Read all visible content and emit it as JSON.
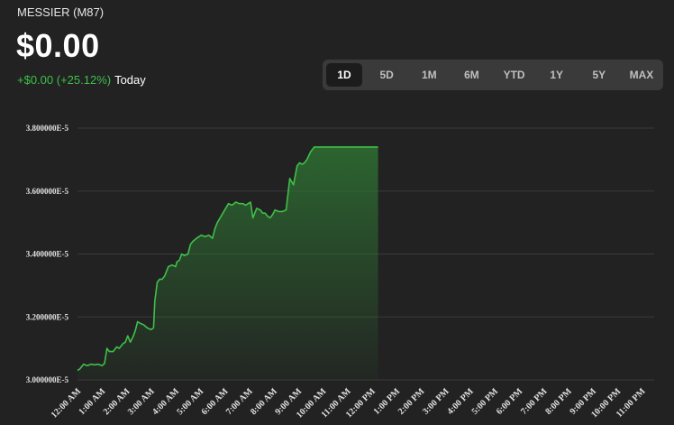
{
  "header": {
    "ticker": "MESSIER (M87)",
    "price": "$0.00",
    "change": "+$0.00 (+25.12%)",
    "period": "Today"
  },
  "ranges": [
    {
      "label": "1D",
      "active": true
    },
    {
      "label": "5D",
      "active": false
    },
    {
      "label": "1M",
      "active": false
    },
    {
      "label": "6M",
      "active": false
    },
    {
      "label": "YTD",
      "active": false
    },
    {
      "label": "1Y",
      "active": false
    },
    {
      "label": "5Y",
      "active": false
    },
    {
      "label": "MAX",
      "active": false
    }
  ],
  "colors": {
    "background": "#222222",
    "line": "#3fbf4a",
    "grid": "#3a3a3a"
  },
  "chart_data": {
    "type": "area",
    "y_tick_labels": [
      "3.800000E-5",
      "3.600000E-5",
      "3.400000E-5",
      "3.200000E-5",
      "3.000000E-5"
    ],
    "y_ticks": [
      3.8e-05,
      3.6e-05,
      3.4e-05,
      3.2e-05,
      3e-05
    ],
    "ylim": [
      3e-05,
      3.8e-05
    ],
    "x_tick_labels": [
      "12:00 AM",
      "1:00 AM",
      "2:00 AM",
      "3:00 AM",
      "4:00 AM",
      "5:00 AM",
      "6:00 AM",
      "7:00 AM",
      "8:00 AM",
      "9:00 AM",
      "10:00 AM",
      "11:00 AM",
      "12:00 PM",
      "1:00 PM",
      "2:00 PM",
      "3:00 PM",
      "4:00 PM",
      "5:00 PM",
      "6:00 PM",
      "7:00 PM",
      "8:00 PM",
      "9:00 PM",
      "10:00 PM",
      "11:00 PM"
    ],
    "grid": true,
    "series": [
      {
        "x": [
          0.0,
          0.1,
          0.25,
          0.4,
          0.55,
          0.7,
          0.85,
          1.0,
          1.1,
          1.2,
          1.3,
          1.45,
          1.6,
          1.7,
          1.85,
          1.95,
          2.05,
          2.15,
          2.25,
          2.35,
          2.45,
          2.55,
          2.7,
          2.85,
          3.0,
          3.1,
          3.15,
          3.25,
          3.35,
          3.45,
          3.55,
          3.7,
          3.85,
          4.0,
          4.05,
          4.15,
          4.25,
          4.35,
          4.5,
          4.6,
          4.7,
          4.85,
          4.95,
          5.05,
          5.2,
          5.35,
          5.5,
          5.6,
          5.7,
          5.85,
          6.0,
          6.15,
          6.3,
          6.45,
          6.6,
          6.75,
          6.85,
          6.95,
          7.05,
          7.15,
          7.3,
          7.45,
          7.55,
          7.65,
          7.75,
          7.85,
          7.95,
          8.05,
          8.2,
          8.35,
          8.5,
          8.65,
          8.8,
          8.95,
          9.05,
          9.15,
          9.25,
          9.35,
          9.5,
          9.65,
          9.8,
          9.95,
          10.05,
          10.15,
          10.3,
          10.45,
          10.6,
          10.75,
          10.85,
          10.95,
          11.05,
          11.2,
          11.35,
          11.5,
          11.65,
          11.8,
          11.95,
          12.05,
          12.15,
          12.25
        ],
        "values": [
          3.03e-05,
          3.035e-05,
          3.05e-05,
          3.045e-05,
          3.05e-05,
          3.048e-05,
          3.05e-05,
          3.045e-05,
          3.052e-05,
          3.1e-05,
          3.09e-05,
          3.09e-05,
          3.105e-05,
          3.1e-05,
          3.115e-05,
          3.12e-05,
          3.14e-05,
          3.12e-05,
          3.135e-05,
          3.155e-05,
          3.185e-05,
          3.18e-05,
          3.175e-05,
          3.165e-05,
          3.16e-05,
          3.165e-05,
          3.25e-05,
          3.31e-05,
          3.32e-05,
          3.32e-05,
          3.33e-05,
          3.36e-05,
          3.365e-05,
          3.36e-05,
          3.375e-05,
          3.38e-05,
          3.4e-05,
          3.395e-05,
          3.4e-05,
          3.43e-05,
          3.44e-05,
          3.45e-05,
          3.455e-05,
          3.46e-05,
          3.455e-05,
          3.46e-05,
          3.45e-05,
          3.48e-05,
          3.5e-05,
          3.52e-05,
          3.54e-05,
          3.56e-05,
          3.555e-05,
          3.565e-05,
          3.56e-05,
          3.56e-05,
          3.555e-05,
          3.56e-05,
          3.565e-05,
          3.515e-05,
          3.545e-05,
          3.54e-05,
          3.53e-05,
          3.53e-05,
          3.52e-05,
          3.515e-05,
          3.525e-05,
          3.54e-05,
          3.535e-05,
          3.535e-05,
          3.54e-05,
          3.64e-05,
          3.62e-05,
          3.68e-05,
          3.69e-05,
          3.685e-05,
          3.69e-05,
          3.7e-05,
          3.725e-05,
          3.74e-05,
          3.74e-05,
          3.74e-05,
          3.74e-05,
          3.74e-05,
          3.74e-05,
          3.74e-05,
          3.74e-05,
          3.74e-05,
          3.74e-05,
          3.74e-05,
          3.74e-05,
          3.74e-05,
          3.74e-05,
          3.74e-05,
          3.74e-05,
          3.74e-05,
          3.74e-05,
          3.74e-05,
          3.74e-05,
          3.74e-05
        ]
      }
    ]
  }
}
